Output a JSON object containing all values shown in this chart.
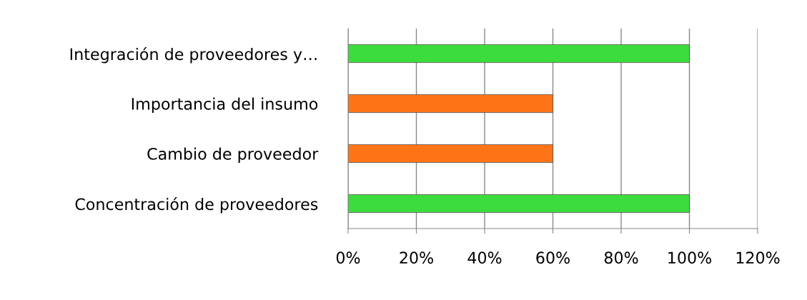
{
  "chart_data": {
    "type": "bar",
    "orientation": "horizontal",
    "categories": [
      "Integración de proveedores y…",
      "Importancia del insumo",
      "Cambio de proveedor",
      "Concentración de proveedores"
    ],
    "values": [
      100,
      60,
      60,
      100
    ],
    "colors": [
      "#3ddc3d",
      "#ff7416",
      "#ff7416",
      "#3ddc3d"
    ],
    "xlim": [
      0,
      120
    ],
    "xticks": [
      {
        "value": 0,
        "label": "0%"
      },
      {
        "value": 20,
        "label": "20%"
      },
      {
        "value": 40,
        "label": "40%"
      },
      {
        "value": 60,
        "label": "60%"
      },
      {
        "value": 80,
        "label": "80%"
      },
      {
        "value": 100,
        "label": "100%"
      },
      {
        "value": 120,
        "label": "120%"
      }
    ],
    "grid": "x"
  }
}
